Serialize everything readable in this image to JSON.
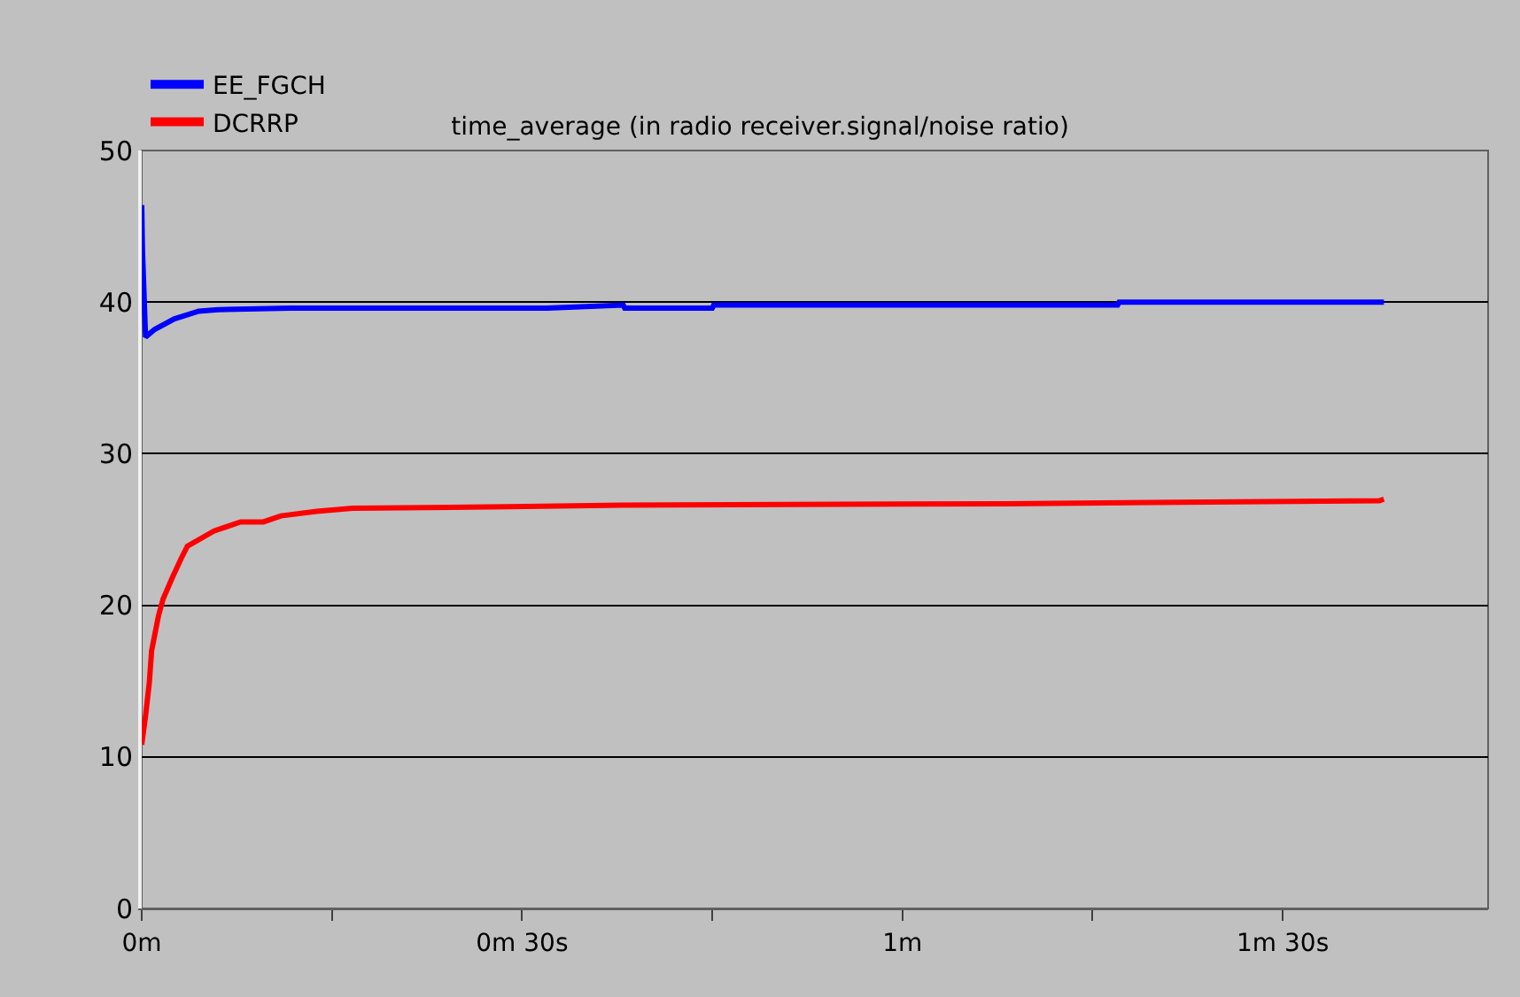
{
  "chart_data": {
    "type": "line",
    "title": "time_average (in radio receiver.signal/noise ratio)",
    "series": [
      {
        "name": "EE_FGCH",
        "color": "#0000ff",
        "x": [
          0,
          0.001,
          0.005,
          0.017,
          0.043,
          0.075,
          0.1,
          0.195,
          0.533,
          0.633,
          0.635,
          0.75,
          0.752,
          1.283,
          1.285,
          1.633
        ],
        "values": [
          46.4,
          43.4,
          37.7,
          38.2,
          38.9,
          39.4,
          39.5,
          39.6,
          39.6,
          39.8,
          39.6,
          39.6,
          39.8,
          39.8,
          40.0,
          40.0
        ]
      },
      {
        "name": "DCRRP",
        "color": "#ff0000",
        "x": [
          0,
          0.005,
          0.01,
          0.013,
          0.022,
          0.028,
          0.04,
          0.052,
          0.06,
          0.095,
          0.13,
          0.16,
          0.183,
          0.23,
          0.277,
          0.483,
          0.633,
          1.133,
          1.627,
          1.633
        ],
        "values": [
          10.8,
          12.7,
          14.9,
          17.0,
          19.3,
          20.4,
          21.8,
          23.1,
          23.9,
          24.9,
          25.5,
          25.5,
          25.9,
          26.2,
          26.4,
          26.5,
          26.6,
          26.7,
          26.9,
          27.0
        ]
      }
    ],
    "xlim": [
      0,
      1.77
    ],
    "ylim": [
      0,
      50
    ],
    "xticks": [
      {
        "value": 0,
        "label": "0m"
      },
      {
        "value": 0.25,
        "label": null
      },
      {
        "value": 0.5,
        "label": "0m 30s"
      },
      {
        "value": 0.75,
        "label": null
      },
      {
        "value": 1,
        "label": "1m"
      },
      {
        "value": 1.25,
        "label": null
      },
      {
        "value": 1.5,
        "label": "1m 30s"
      }
    ],
    "yticks": [
      0,
      10,
      20,
      30,
      40,
      50
    ],
    "grid": "y",
    "legend": "top left",
    "marker": "none",
    "line_style": "solid"
  }
}
